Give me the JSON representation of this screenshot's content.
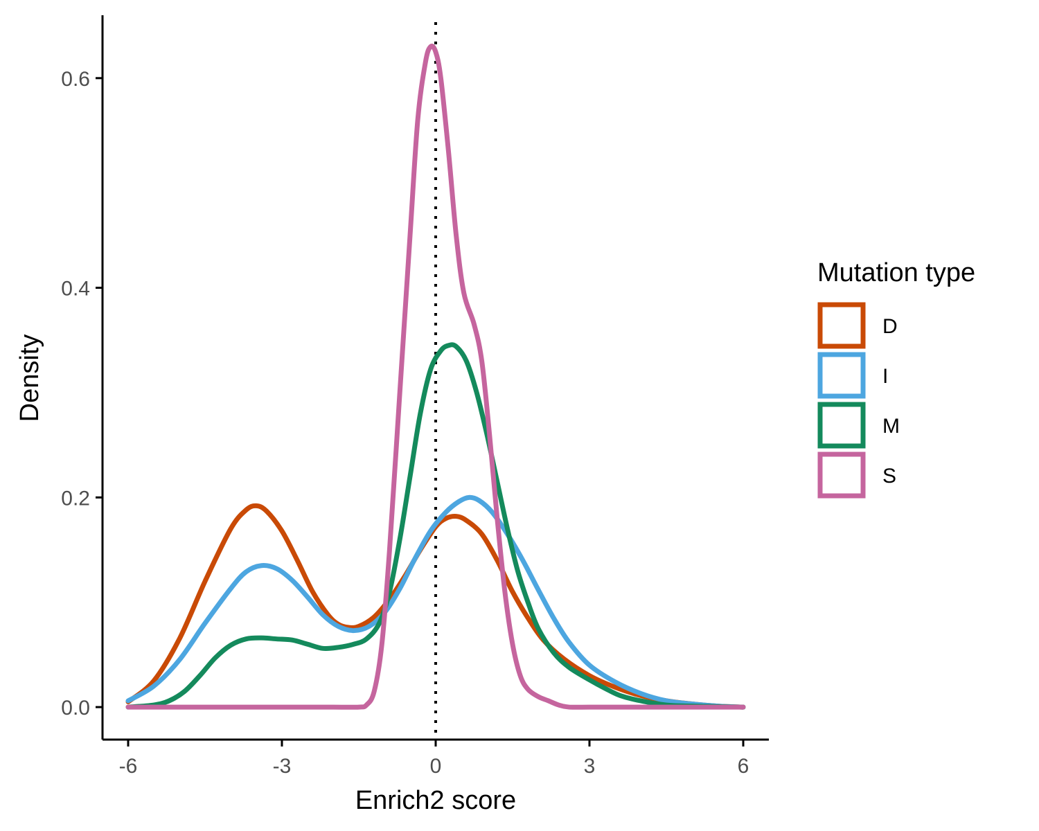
{
  "chart_data": {
    "type": "line",
    "xlabel": "Enrich2 score",
    "ylabel": "Density",
    "xlim": [
      -6.5,
      6.5
    ],
    "ylim": [
      -0.031,
      0.66
    ],
    "xticks": [
      -6,
      -3,
      0,
      3,
      6
    ],
    "xtick_labels": [
      "-6",
      "-3",
      "0",
      "3",
      "6"
    ],
    "yticks": [
      0.0,
      0.2,
      0.4,
      0.6
    ],
    "ytick_labels": [
      "0.0",
      "0.2",
      "0.4",
      "0.6"
    ],
    "grid": false,
    "reference_line": {
      "x": 0,
      "style": "dotted",
      "color": "#000000"
    },
    "legend": {
      "title": "Mutation type",
      "placement": "right"
    },
    "series": [
      {
        "name": "D",
        "color": "#C94A06",
        "points": [
          [
            -6.0,
            0.005
          ],
          [
            -5.5,
            0.025
          ],
          [
            -5.0,
            0.065
          ],
          [
            -4.5,
            0.12
          ],
          [
            -4.0,
            0.17
          ],
          [
            -3.7,
            0.188
          ],
          [
            -3.5,
            0.192
          ],
          [
            -3.3,
            0.187
          ],
          [
            -3.0,
            0.168
          ],
          [
            -2.7,
            0.14
          ],
          [
            -2.4,
            0.11
          ],
          [
            -2.1,
            0.088
          ],
          [
            -1.9,
            0.079
          ],
          [
            -1.7,
            0.076
          ],
          [
            -1.5,
            0.077
          ],
          [
            -1.2,
            0.086
          ],
          [
            -0.9,
            0.103
          ],
          [
            -0.6,
            0.125
          ],
          [
            -0.3,
            0.15
          ],
          [
            0.0,
            0.172
          ],
          [
            0.2,
            0.18
          ],
          [
            0.4,
            0.182
          ],
          [
            0.6,
            0.178
          ],
          [
            0.9,
            0.165
          ],
          [
            1.2,
            0.14
          ],
          [
            1.5,
            0.11
          ],
          [
            1.8,
            0.085
          ],
          [
            2.1,
            0.064
          ],
          [
            2.5,
            0.046
          ],
          [
            3.0,
            0.03
          ],
          [
            3.5,
            0.019
          ],
          [
            4.0,
            0.011
          ],
          [
            4.5,
            0.006
          ],
          [
            5.0,
            0.003
          ],
          [
            5.5,
            0.001
          ],
          [
            6.0,
            0.0
          ]
        ]
      },
      {
        "name": "I",
        "color": "#4DA6E0",
        "points": [
          [
            -6.0,
            0.006
          ],
          [
            -5.5,
            0.02
          ],
          [
            -5.0,
            0.045
          ],
          [
            -4.5,
            0.08
          ],
          [
            -4.0,
            0.113
          ],
          [
            -3.7,
            0.129
          ],
          [
            -3.4,
            0.135
          ],
          [
            -3.1,
            0.132
          ],
          [
            -2.8,
            0.121
          ],
          [
            -2.5,
            0.105
          ],
          [
            -2.2,
            0.088
          ],
          [
            -1.9,
            0.077
          ],
          [
            -1.6,
            0.073
          ],
          [
            -1.3,
            0.077
          ],
          [
            -1.0,
            0.09
          ],
          [
            -0.7,
            0.113
          ],
          [
            -0.4,
            0.142
          ],
          [
            -0.1,
            0.168
          ],
          [
            0.2,
            0.186
          ],
          [
            0.45,
            0.196
          ],
          [
            0.65,
            0.2
          ],
          [
            0.85,
            0.197
          ],
          [
            1.1,
            0.186
          ],
          [
            1.4,
            0.165
          ],
          [
            1.7,
            0.14
          ],
          [
            2.0,
            0.112
          ],
          [
            2.3,
            0.085
          ],
          [
            2.6,
            0.062
          ],
          [
            3.0,
            0.04
          ],
          [
            3.5,
            0.024
          ],
          [
            4.0,
            0.013
          ],
          [
            4.5,
            0.006
          ],
          [
            5.0,
            0.003
          ],
          [
            5.5,
            0.001
          ],
          [
            6.0,
            0.0
          ]
        ]
      },
      {
        "name": "M",
        "color": "#148A5C",
        "points": [
          [
            -6.0,
            0.0
          ],
          [
            -5.5,
            0.002
          ],
          [
            -5.2,
            0.006
          ],
          [
            -4.9,
            0.015
          ],
          [
            -4.6,
            0.03
          ],
          [
            -4.3,
            0.047
          ],
          [
            -4.0,
            0.059
          ],
          [
            -3.7,
            0.065
          ],
          [
            -3.4,
            0.066
          ],
          [
            -3.1,
            0.065
          ],
          [
            -2.8,
            0.064
          ],
          [
            -2.5,
            0.06
          ],
          [
            -2.2,
            0.056
          ],
          [
            -1.9,
            0.057
          ],
          [
            -1.6,
            0.06
          ],
          [
            -1.35,
            0.065
          ],
          [
            -1.1,
            0.08
          ],
          [
            -0.9,
            0.11
          ],
          [
            -0.7,
            0.16
          ],
          [
            -0.5,
            0.22
          ],
          [
            -0.3,
            0.28
          ],
          [
            -0.1,
            0.322
          ],
          [
            0.1,
            0.34
          ],
          [
            0.25,
            0.345
          ],
          [
            0.4,
            0.344
          ],
          [
            0.6,
            0.33
          ],
          [
            0.8,
            0.3
          ],
          [
            1.0,
            0.26
          ],
          [
            1.2,
            0.215
          ],
          [
            1.4,
            0.17
          ],
          [
            1.6,
            0.13
          ],
          [
            1.8,
            0.1
          ],
          [
            2.0,
            0.075
          ],
          [
            2.3,
            0.052
          ],
          [
            2.6,
            0.038
          ],
          [
            3.0,
            0.026
          ],
          [
            3.3,
            0.018
          ],
          [
            3.6,
            0.011
          ],
          [
            4.0,
            0.006
          ],
          [
            4.5,
            0.002
          ],
          [
            5.0,
            0.001
          ],
          [
            6.0,
            0.0
          ]
        ]
      },
      {
        "name": "S",
        "color": "#C5659E",
        "points": [
          [
            -6.0,
            0.0
          ],
          [
            -5.0,
            0.0
          ],
          [
            -4.0,
            0.0
          ],
          [
            -3.0,
            0.0
          ],
          [
            -2.0,
            0.0
          ],
          [
            -1.5,
            0.0
          ],
          [
            -1.35,
            0.002
          ],
          [
            -1.2,
            0.015
          ],
          [
            -1.05,
            0.06
          ],
          [
            -0.9,
            0.15
          ],
          [
            -0.7,
            0.3
          ],
          [
            -0.5,
            0.45
          ],
          [
            -0.35,
            0.56
          ],
          [
            -0.2,
            0.615
          ],
          [
            -0.1,
            0.63
          ],
          [
            0.0,
            0.625
          ],
          [
            0.1,
            0.6
          ],
          [
            0.25,
            0.53
          ],
          [
            0.4,
            0.45
          ],
          [
            0.55,
            0.395
          ],
          [
            0.75,
            0.365
          ],
          [
            0.9,
            0.33
          ],
          [
            1.05,
            0.26
          ],
          [
            1.2,
            0.18
          ],
          [
            1.35,
            0.11
          ],
          [
            1.5,
            0.06
          ],
          [
            1.65,
            0.03
          ],
          [
            1.8,
            0.017
          ],
          [
            2.0,
            0.01
          ],
          [
            2.2,
            0.006
          ],
          [
            2.4,
            0.002
          ],
          [
            2.6,
            0.0
          ],
          [
            3.0,
            0.0
          ],
          [
            4.0,
            0.0
          ],
          [
            5.0,
            0.0
          ],
          [
            6.0,
            0.0
          ]
        ]
      }
    ]
  }
}
